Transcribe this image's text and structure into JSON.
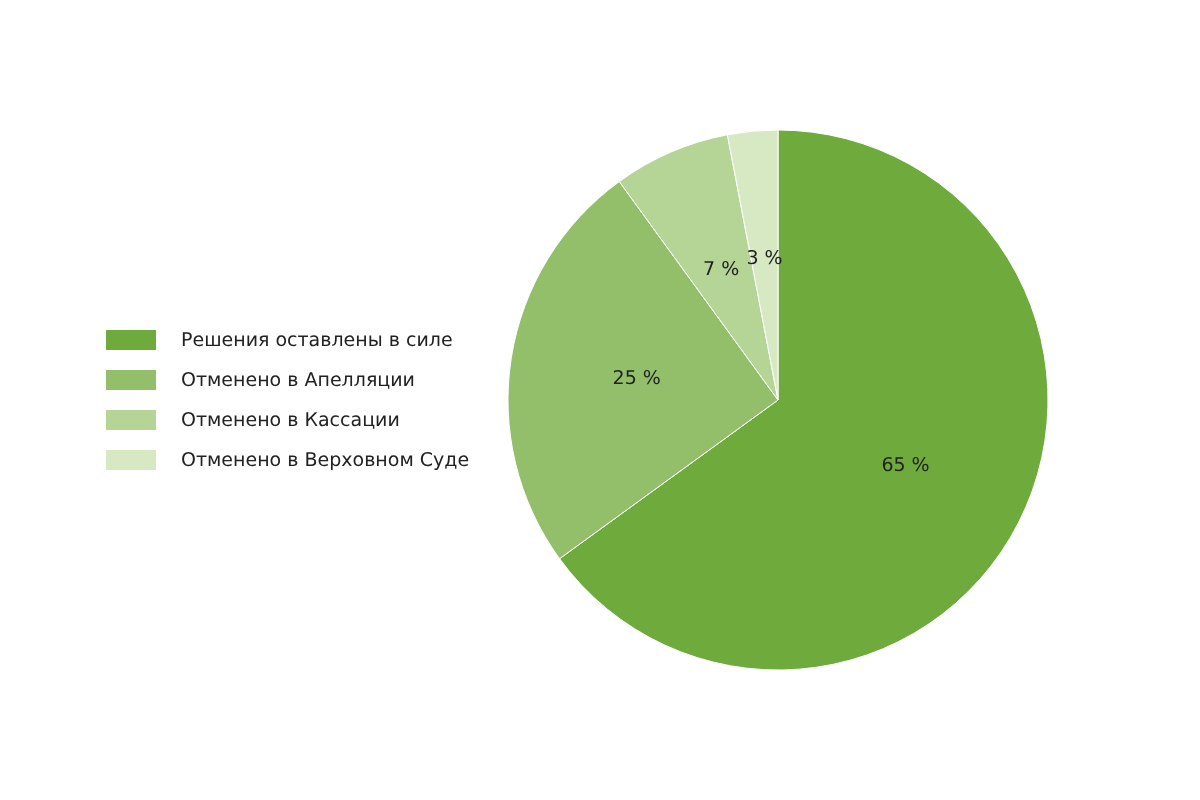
{
  "chart_data": {
    "type": "pie",
    "categories": [
      "Решения оставлены в силе",
      "Отменено в Апелляции",
      "Отменено в Кассации",
      "Отменено в Верховном Суде"
    ],
    "values": [
      65,
      25,
      7,
      3
    ],
    "colors": [
      "#6eaa3c",
      "#93bf6b",
      "#b5d597",
      "#d7e9c3"
    ],
    "value_labels": [
      "65 %",
      "25 %",
      "7 %",
      "3 %"
    ],
    "legend": "left"
  }
}
